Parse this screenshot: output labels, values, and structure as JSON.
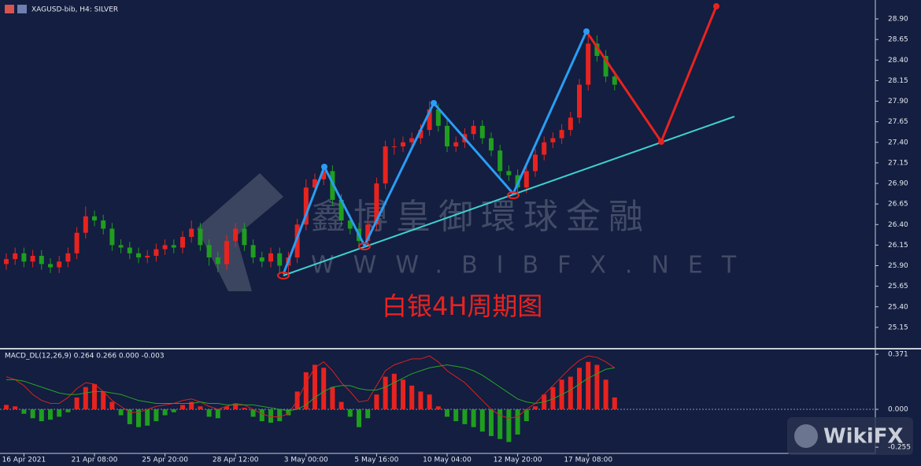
{
  "chart_data": {
    "type": "candlestick",
    "title": "XAGUSD-bib, H4:  SILVER",
    "categories": [
      null,
      null,
      "16 Apr 2021",
      null,
      null,
      null,
      null,
      null,
      null,
      null,
      "21 Apr 08:00",
      null,
      null,
      null,
      null,
      null,
      null,
      null,
      "25 Apr 20:00",
      null,
      null,
      null,
      null,
      null,
      null,
      null,
      "28 Apr 12:00",
      null,
      null,
      null,
      null,
      null,
      null,
      null,
      "3 May 00:00",
      null,
      null,
      null,
      null,
      null,
      null,
      null,
      "5 May 16:00",
      null,
      null,
      null,
      null,
      null,
      null,
      null,
      "10 May 04:00",
      null,
      null,
      null,
      null,
      null,
      null,
      null,
      "12 May 20:00",
      null,
      null,
      null,
      null,
      null,
      null,
      null,
      "17 May 08:00",
      null,
      null,
      null
    ],
    "open": [
      25.92,
      25.98,
      26.05,
      25.95,
      26.02,
      25.92,
      25.88,
      25.95,
      26.05,
      26.3,
      26.5,
      26.45,
      26.35,
      26.15,
      26.12,
      26.05,
      26.0,
      26.02,
      26.1,
      26.15,
      26.12,
      26.25,
      26.35,
      26.15,
      26.0,
      25.92,
      26.2,
      26.35,
      26.15,
      26.0,
      25.95,
      26.05,
      25.9,
      26.0,
      26.4,
      26.85,
      26.95,
      27.05,
      26.7,
      26.45,
      26.35,
      26.2,
      26.4,
      26.9,
      27.35,
      27.35,
      27.4,
      27.45,
      27.55,
      27.8,
      27.6,
      27.35,
      27.4,
      27.5,
      27.6,
      27.45,
      27.3,
      27.05,
      27.0,
      26.85,
      27.05,
      27.25,
      27.4,
      27.45,
      27.55,
      27.7,
      28.1,
      28.6,
      28.45,
      28.2
    ],
    "high": [
      26.05,
      26.12,
      26.12,
      26.09,
      26.09,
      25.99,
      26.02,
      26.12,
      26.37,
      26.62,
      26.57,
      26.52,
      26.42,
      26.22,
      26.19,
      26.12,
      26.09,
      26.17,
      26.22,
      26.22,
      26.32,
      26.45,
      26.42,
      26.22,
      26.07,
      26.27,
      26.42,
      26.42,
      26.22,
      26.07,
      26.12,
      26.12,
      26.07,
      26.47,
      26.95,
      27.02,
      27.1,
      27.12,
      26.77,
      26.52,
      26.42,
      26.47,
      26.97,
      27.42,
      27.45,
      27.47,
      27.52,
      27.62,
      27.9,
      27.87,
      27.67,
      27.47,
      27.57,
      27.67,
      27.67,
      27.52,
      27.37,
      27.12,
      27.07,
      27.12,
      27.32,
      27.47,
      27.52,
      27.62,
      27.77,
      28.17,
      28.75,
      28.7,
      28.52,
      28.27
    ],
    "low": [
      25.85,
      25.91,
      25.88,
      25.88,
      25.85,
      25.81,
      25.81,
      25.88,
      25.98,
      26.23,
      26.38,
      26.28,
      26.08,
      26.05,
      25.98,
      25.93,
      25.93,
      25.95,
      26.03,
      26.05,
      26.05,
      26.18,
      26.08,
      25.9,
      25.82,
      25.85,
      26.13,
      26.08,
      25.93,
      25.88,
      25.88,
      25.8,
      25.78,
      25.93,
      26.33,
      26.78,
      26.88,
      26.63,
      26.38,
      26.28,
      26.13,
      26.13,
      26.33,
      26.83,
      27.25,
      27.28,
      27.33,
      27.38,
      27.48,
      27.53,
      27.28,
      27.28,
      27.33,
      27.43,
      27.38,
      27.23,
      26.98,
      26.93,
      26.76,
      26.78,
      26.98,
      27.18,
      27.33,
      27.38,
      27.48,
      27.63,
      28.03,
      28.38,
      28.13,
      28.03
    ],
    "close": [
      25.98,
      26.05,
      25.95,
      26.02,
      25.92,
      25.88,
      25.95,
      26.05,
      26.3,
      26.5,
      26.45,
      26.35,
      26.15,
      26.12,
      26.05,
      26.0,
      26.02,
      26.1,
      26.15,
      26.12,
      26.25,
      26.35,
      26.15,
      26.0,
      25.92,
      26.2,
      26.35,
      26.15,
      26.0,
      25.95,
      26.05,
      25.9,
      26.0,
      26.4,
      26.85,
      26.95,
      27.05,
      26.7,
      26.45,
      26.35,
      26.2,
      26.4,
      26.9,
      27.35,
      27.35,
      27.4,
      27.45,
      27.55,
      27.8,
      27.6,
      27.35,
      27.4,
      27.5,
      27.6,
      27.45,
      27.3,
      27.05,
      27.0,
      26.85,
      27.05,
      27.25,
      27.4,
      27.45,
      27.55,
      27.7,
      28.1,
      28.6,
      28.45,
      28.2,
      28.1
    ],
    "up_color": "#e8231f",
    "down_color": "#1f9e1f",
    "ylim": [
      24.9,
      29.13
    ],
    "yticks": [
      {
        "value": 28.9,
        "label": "28.90"
      },
      {
        "value": 28.65,
        "label": "28.65"
      },
      {
        "value": 28.4,
        "label": "28.40"
      },
      {
        "value": 28.15,
        "label": "28.15"
      },
      {
        "value": 27.9,
        "label": "27.90"
      },
      {
        "value": 27.65,
        "label": "27.65"
      },
      {
        "value": 27.4,
        "label": "27.40"
      },
      {
        "value": 27.15,
        "label": "27.15"
      },
      {
        "value": 26.9,
        "label": "26.90"
      },
      {
        "value": 26.65,
        "label": "26.65"
      },
      {
        "value": 26.4,
        "label": "26.40"
      },
      {
        "value": 26.15,
        "label": "26.15"
      },
      {
        "value": 25.9,
        "label": "25.90"
      },
      {
        "value": 25.65,
        "label": "25.65"
      },
      {
        "value": 25.4,
        "label": "25.40"
      },
      {
        "value": 25.15,
        "label": "25.15"
      }
    ],
    "annotation": "白银4H周期图",
    "watermark": [
      "鑫博皇御環球金融",
      "WWW.BIBFX.NET"
    ],
    "logo": "WikiFX",
    "indicator": {
      "title": "MACD_DL(12,26,9) 0.264 0.266 0.000 -0.003",
      "histogram": [
        0.03,
        0.02,
        -0.03,
        -0.06,
        -0.08,
        -0.07,
        -0.05,
        -0.02,
        0.08,
        0.15,
        0.17,
        0.12,
        0.05,
        -0.04,
        -0.1,
        -0.12,
        -0.11,
        -0.08,
        -0.04,
        -0.02,
        0.03,
        0.05,
        0.02,
        -0.05,
        -0.06,
        0.02,
        0.04,
        0.01,
        -0.05,
        -0.08,
        -0.09,
        -0.08,
        -0.04,
        0.12,
        0.25,
        0.3,
        0.28,
        0.15,
        0.05,
        -0.05,
        -0.12,
        -0.06,
        0.1,
        0.22,
        0.24,
        0.2,
        0.16,
        0.12,
        0.1,
        0.02,
        -0.05,
        -0.08,
        -0.1,
        -0.12,
        -0.15,
        -0.18,
        -0.2,
        -0.22,
        -0.17,
        -0.08,
        0.02,
        0.1,
        0.15,
        0.2,
        0.22,
        0.28,
        0.32,
        0.3,
        0.2,
        0.08
      ],
      "series": [
        {
          "color": "#d8231f",
          "values": [
            0.22,
            0.2,
            0.16,
            0.1,
            0.06,
            0.04,
            0.04,
            0.08,
            0.14,
            0.18,
            0.17,
            0.12,
            0.06,
            0.02,
            -0.02,
            -0.02,
            0.0,
            0.02,
            0.03,
            0.04,
            0.06,
            0.07,
            0.05,
            0.02,
            0.0,
            0.02,
            0.04,
            0.03,
            0.0,
            -0.03,
            -0.05,
            -0.05,
            -0.03,
            0.06,
            0.18,
            0.28,
            0.32,
            0.26,
            0.18,
            0.12,
            0.05,
            0.06,
            0.16,
            0.26,
            0.3,
            0.32,
            0.34,
            0.34,
            0.36,
            0.32,
            0.26,
            0.22,
            0.18,
            0.12,
            0.06,
            0.0,
            -0.04,
            -0.06,
            -0.05,
            0.0,
            0.04,
            0.1,
            0.16,
            0.22,
            0.28,
            0.33,
            0.36,
            0.35,
            0.32,
            0.28
          ]
        },
        {
          "color": "#27a327",
          "values": [
            0.2,
            0.2,
            0.19,
            0.17,
            0.15,
            0.13,
            0.11,
            0.1,
            0.1,
            0.11,
            0.12,
            0.12,
            0.11,
            0.1,
            0.08,
            0.06,
            0.05,
            0.04,
            0.04,
            0.04,
            0.04,
            0.04,
            0.05,
            0.04,
            0.04,
            0.03,
            0.03,
            0.03,
            0.03,
            0.02,
            0.01,
            0.0,
            -0.01,
            0.0,
            0.03,
            0.08,
            0.12,
            0.15,
            0.16,
            0.16,
            0.14,
            0.13,
            0.13,
            0.15,
            0.18,
            0.21,
            0.24,
            0.26,
            0.28,
            0.29,
            0.3,
            0.29,
            0.28,
            0.26,
            0.23,
            0.19,
            0.15,
            0.11,
            0.07,
            0.05,
            0.04,
            0.05,
            0.07,
            0.1,
            0.13,
            0.17,
            0.21,
            0.24,
            0.27,
            0.28
          ]
        }
      ],
      "ylim": [
        -0.297,
        0.398
      ],
      "yticks": [
        0.371,
        {
          "value": 0,
          "label": "0.000"
        },
        -0.255
      ]
    }
  }
}
